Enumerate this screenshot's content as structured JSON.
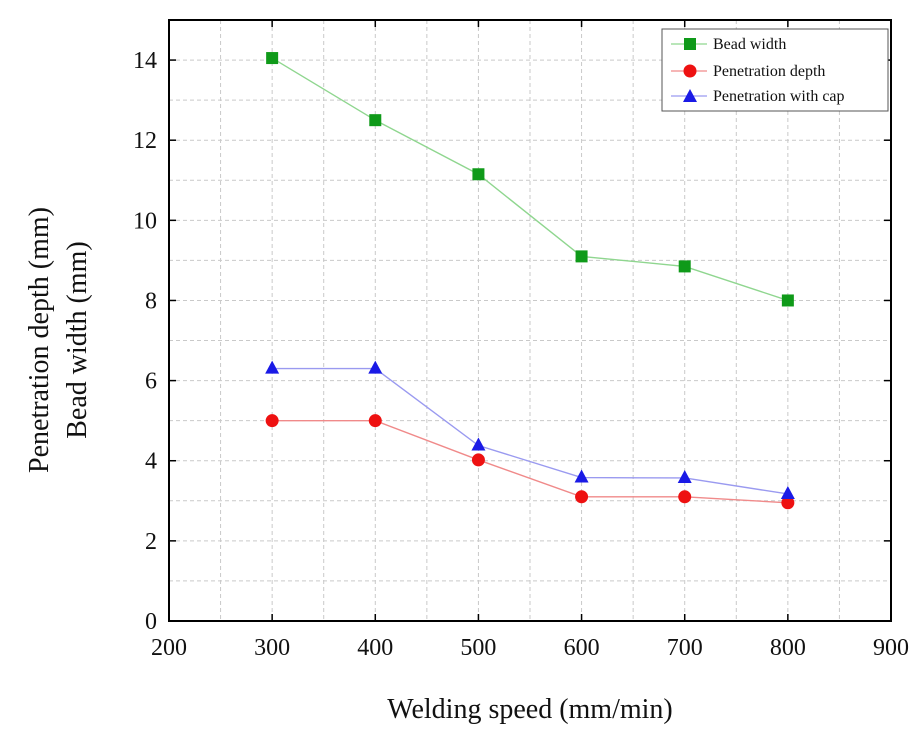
{
  "chart_data": {
    "type": "line",
    "xlabel": "Welding speed (mm/min)",
    "ylabel_lines": [
      "Penetration depth (mm)",
      "Bead width (mm)"
    ],
    "xlim": [
      200,
      900
    ],
    "ylim": [
      0,
      15
    ],
    "x_ticks": [
      200,
      300,
      400,
      500,
      600,
      700,
      800,
      900
    ],
    "y_ticks": [
      0,
      2,
      4,
      6,
      8,
      10,
      12,
      14
    ],
    "grid": true,
    "legend_position": "top-right",
    "x": [
      300,
      400,
      500,
      600,
      700,
      800
    ],
    "series": [
      {
        "name": "Bead width",
        "values": [
          14.05,
          12.5,
          11.15,
          9.1,
          8.85,
          8.0
        ],
        "marker": "square",
        "marker_color": "#0f9a19",
        "line_color": "#8fd68f"
      },
      {
        "name": "Penetration depth",
        "values": [
          5.0,
          5.0,
          4.02,
          3.1,
          3.1,
          2.95
        ],
        "marker": "circle",
        "marker_color": "#ee1111",
        "line_color": "#f08a8a"
      },
      {
        "name": "Penetration with cap",
        "values": [
          6.3,
          6.3,
          4.38,
          3.58,
          3.57,
          3.17
        ],
        "marker": "triangle",
        "marker_color": "#1a1ae6",
        "line_color": "#9a9af0"
      }
    ]
  }
}
